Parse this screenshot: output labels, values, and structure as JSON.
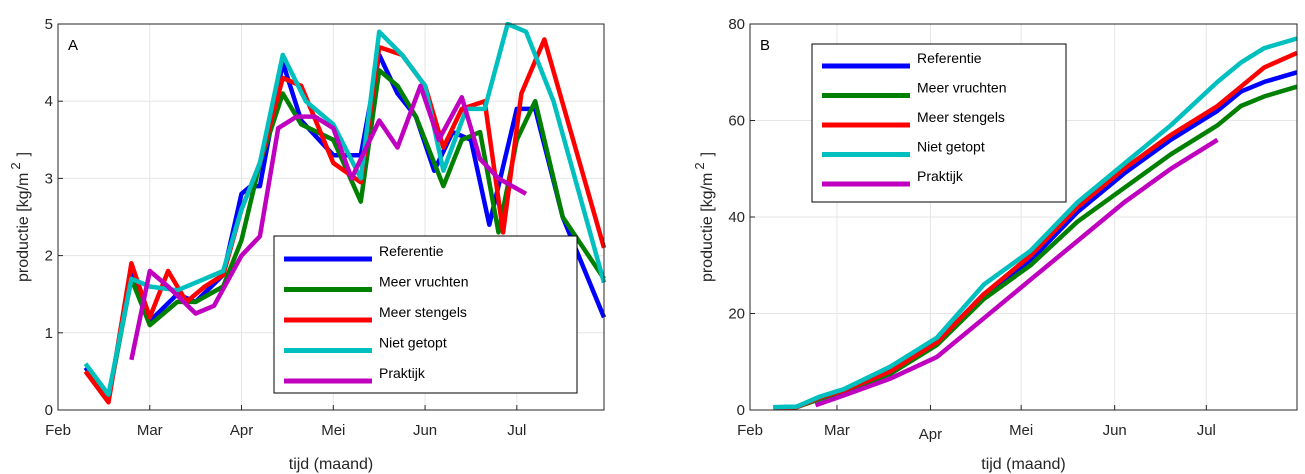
{
  "chart_data": [
    {
      "type": "line",
      "panel_label": "A",
      "xlabel": "tijd (maand)",
      "ylabel_main": "productie [kg/m",
      "ylabel_sup": "2",
      "ylabel_end": "]",
      "xlim": [
        0,
        5.95
      ],
      "ylim": [
        0,
        5
      ],
      "x_ticks": [
        {
          "pos": 0,
          "label": "Feb"
        },
        {
          "pos": 1,
          "label": "Mar"
        },
        {
          "pos": 2,
          "label": "Apr"
        },
        {
          "pos": 3,
          "label": "Mei"
        },
        {
          "pos": 4,
          "label": "Jun"
        },
        {
          "pos": 5,
          "label": "Jul"
        }
      ],
      "y_ticks": [
        0,
        1,
        2,
        3,
        4,
        5
      ],
      "grid": true,
      "legend_position": "lower-right",
      "series": [
        {
          "name": "Referentie",
          "color": "#0000ff",
          "x": [
            0.3,
            0.55,
            0.8,
            1.0,
            1.3,
            1.5,
            1.8,
            2.0,
            2.1,
            2.2,
            2.45,
            2.65,
            3.0,
            3.3,
            3.5,
            3.7,
            3.9,
            4.1,
            4.3,
            4.5,
            4.7,
            5.0,
            5.2,
            5.5,
            5.95
          ],
          "y": [
            0.55,
            0.15,
            1.75,
            1.15,
            1.5,
            1.4,
            1.75,
            2.8,
            2.9,
            2.9,
            4.5,
            3.75,
            3.3,
            3.3,
            4.6,
            4.1,
            3.8,
            3.1,
            3.6,
            3.5,
            2.4,
            3.9,
            3.9,
            2.5,
            1.2
          ]
        },
        {
          "name": "Meer vruchten",
          "color": "#008000",
          "x": [
            0.3,
            0.55,
            0.8,
            1.0,
            1.3,
            1.5,
            1.8,
            2.0,
            2.2,
            2.45,
            2.65,
            3.0,
            3.3,
            3.5,
            3.7,
            3.9,
            4.2,
            4.4,
            4.6,
            4.8,
            5.0,
            5.2,
            5.5,
            5.95
          ],
          "y": [
            0.5,
            0.15,
            1.7,
            1.1,
            1.4,
            1.4,
            1.6,
            2.2,
            3.2,
            4.1,
            3.7,
            3.5,
            2.7,
            4.4,
            4.2,
            3.8,
            2.9,
            3.5,
            3.6,
            2.3,
            3.5,
            4.0,
            2.5,
            1.7
          ]
        },
        {
          "name": "Meer stengels",
          "color": "#ff0000",
          "x": [
            0.3,
            0.55,
            0.8,
            1.0,
            1.2,
            1.4,
            1.6,
            1.8,
            2.0,
            2.2,
            2.45,
            2.65,
            3.0,
            3.3,
            3.5,
            3.75,
            4.0,
            4.2,
            4.4,
            4.65,
            4.85,
            5.05,
            5.3,
            5.95
          ],
          "y": [
            0.5,
            0.1,
            1.9,
            1.2,
            1.8,
            1.4,
            1.6,
            1.75,
            2.6,
            3.2,
            4.3,
            4.2,
            3.2,
            2.95,
            4.7,
            4.6,
            4.2,
            3.4,
            3.9,
            4.0,
            2.3,
            4.1,
            4.8,
            2.1
          ]
        },
        {
          "name": "Niet getopt",
          "color": "#00bfbf",
          "x": [
            0.3,
            0.55,
            0.8,
            1.0,
            1.3,
            1.6,
            1.8,
            2.0,
            2.2,
            2.45,
            2.7,
            3.0,
            3.3,
            3.5,
            3.75,
            4.0,
            4.2,
            4.45,
            4.65,
            4.9,
            5.1,
            5.4,
            5.95
          ],
          "y": [
            0.6,
            0.2,
            1.7,
            1.6,
            1.55,
            1.7,
            1.8,
            2.6,
            3.2,
            4.6,
            4.0,
            3.7,
            3.0,
            4.9,
            4.6,
            4.2,
            3.1,
            3.9,
            3.9,
            5.0,
            4.9,
            4.0,
            1.65
          ]
        },
        {
          "name": "Praktijk",
          "color": "#bf00bf",
          "x": [
            0.8,
            1.0,
            1.2,
            1.5,
            1.7,
            2.0,
            2.2,
            2.4,
            2.6,
            2.8,
            3.0,
            3.2,
            3.5,
            3.7,
            3.95,
            4.15,
            4.4,
            4.6,
            4.8,
            5.1
          ],
          "y": [
            0.65,
            1.8,
            1.6,
            1.25,
            1.35,
            2.0,
            2.25,
            3.65,
            3.8,
            3.8,
            3.65,
            3.0,
            3.75,
            3.4,
            4.2,
            3.5,
            4.05,
            3.25,
            3.0,
            2.8
          ]
        }
      ]
    },
    {
      "type": "line",
      "panel_label": "B",
      "xlabel": "tijd (maand)",
      "ylabel_main": "productie [kg/m",
      "ylabel_sup": "2",
      "ylabel_end": "]",
      "xlim": [
        0,
        5.85
      ],
      "ylim": [
        0,
        80
      ],
      "x_ticks": [
        {
          "pos": 0,
          "label": "Feb"
        },
        {
          "pos": 0.93,
          "label": "Mar"
        },
        {
          "pos": 1.93,
          "label": "Apr"
        },
        {
          "pos": 2.9,
          "label": "Mei"
        },
        {
          "pos": 3.9,
          "label": "Jun"
        },
        {
          "pos": 4.88,
          "label": "Jul"
        }
      ],
      "y_ticks": [
        0,
        20,
        40,
        60,
        80
      ],
      "grid": true,
      "legend_position": "top-left",
      "series": [
        {
          "name": "Referentie",
          "color": "#0000ff",
          "x": [
            0.25,
            0.5,
            0.75,
            1.0,
            1.5,
            2.0,
            2.5,
            3.0,
            3.5,
            4.0,
            4.5,
            5.0,
            5.25,
            5.5,
            5.85
          ],
          "y": [
            0.5,
            0.7,
            2.5,
            4.0,
            8.0,
            14.0,
            24.0,
            31.0,
            41.0,
            49.0,
            56.0,
            62.0,
            66.0,
            68.0,
            70.0
          ]
        },
        {
          "name": "Meer vruchten",
          "color": "#008000",
          "x": [
            0.25,
            0.5,
            0.75,
            1.0,
            1.5,
            2.0,
            2.5,
            3.0,
            3.5,
            4.0,
            4.5,
            5.0,
            5.25,
            5.5,
            5.85
          ],
          "y": [
            0.5,
            0.6,
            2.3,
            3.8,
            7.5,
            13.5,
            23.0,
            30.0,
            39.0,
            46.0,
            53.0,
            59.0,
            63.0,
            65.0,
            67.0
          ]
        },
        {
          "name": "Meer stengels",
          "color": "#ff0000",
          "x": [
            0.25,
            0.5,
            0.75,
            1.0,
            1.5,
            2.0,
            2.5,
            3.0,
            3.5,
            4.0,
            4.5,
            5.0,
            5.25,
            5.5,
            5.85
          ],
          "y": [
            0.5,
            0.6,
            2.6,
            4.0,
            8.0,
            14.0,
            24.0,
            32.0,
            42.0,
            50.0,
            57.0,
            63.0,
            67.0,
            71.0,
            74.0
          ]
        },
        {
          "name": "Niet getopt",
          "color": "#00bfbf",
          "x": [
            0.25,
            0.5,
            0.75,
            1.0,
            1.5,
            2.0,
            2.5,
            3.0,
            3.5,
            4.0,
            4.5,
            5.0,
            5.25,
            5.5,
            5.85
          ],
          "y": [
            0.6,
            0.7,
            2.8,
            4.3,
            9.0,
            15.0,
            26.0,
            33.0,
            43.0,
            51.0,
            59.0,
            68.0,
            72.0,
            75.0,
            77.0
          ]
        },
        {
          "name": "Praktijk",
          "color": "#bf00bf",
          "x": [
            0.7,
            1.0,
            1.5,
            2.0,
            2.5,
            3.0,
            3.5,
            4.0,
            4.5,
            5.0
          ],
          "y": [
            1.0,
            3.0,
            6.5,
            11.0,
            19.0,
            27.0,
            35.0,
            43.0,
            50.0,
            56.0
          ]
        }
      ]
    }
  ]
}
